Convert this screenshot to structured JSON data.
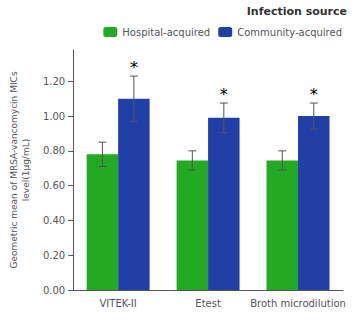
{
  "chart_data": {
    "type": "bar",
    "categories": [
      "VITEK-II",
      "Etest",
      "Broth microdilution"
    ],
    "series": [
      {
        "name": "Hospital-acquired",
        "color": "#22AA22",
        "values": [
          0.78,
          0.745,
          0.745
        ],
        "errors": [
          0.07,
          0.055,
          0.055
        ]
      },
      {
        "name": "Community-acquired",
        "color": "#2040A8",
        "values": [
          1.1,
          0.99,
          1.0
        ],
        "errors": [
          0.13,
          0.085,
          0.075
        ]
      }
    ],
    "ylabel": "Geometric mean of MRSA-vancomycin MICs\nlevel(1μg/mL)",
    "ylim": [
      0.0,
      1.38
    ],
    "yticks": [
      {
        "value": 0,
        "label": "0.00"
      },
      {
        "value": 0.2,
        "label": "0.20"
      },
      {
        "value": 0.4,
        "label": "0.40"
      },
      {
        "value": 0.6,
        "label": "0.60"
      },
      {
        "value": 0.8,
        "label": "0.80"
      },
      {
        "value": 1,
        "label": "1.00"
      },
      {
        "value": 1.2,
        "label": "1.20"
      }
    ],
    "grid": false,
    "legend": "upper right",
    "legend_title": "Infection source",
    "annotations": [
      {
        "text": "*",
        "series": "Community-acquired",
        "category": "VITEK-II"
      },
      {
        "text": "*",
        "series": "Community-acquired",
        "category": "Etest"
      },
      {
        "text": "*",
        "series": "Community-acquired",
        "category": "Broth microdilution"
      }
    ]
  }
}
